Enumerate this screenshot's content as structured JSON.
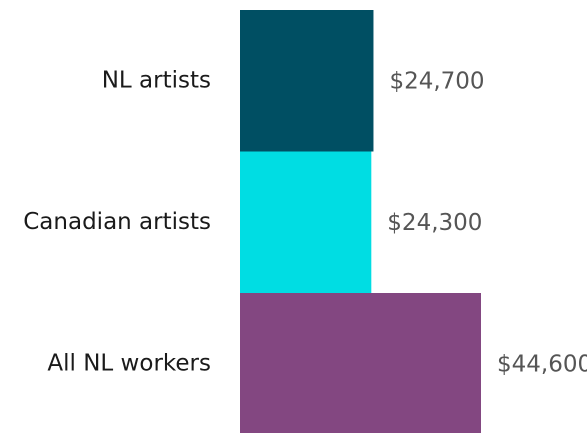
{
  "chart_data": {
    "type": "bar",
    "orientation": "horizontal",
    "categories": [
      "NL artists",
      "Canadian artists",
      "All NL workers"
    ],
    "values": [
      24700,
      24300,
      44600
    ],
    "value_labels": [
      "$24,700",
      "$24,300",
      "$44,600"
    ],
    "colors": [
      "#004f63",
      "#00dde3",
      "#834781"
    ],
    "title": "",
    "xlabel": "",
    "ylabel": "",
    "xlim": [
      0,
      44600
    ],
    "grid": false,
    "legend": "none"
  }
}
